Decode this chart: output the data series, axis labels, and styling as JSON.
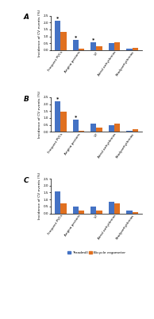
{
  "panels": [
    {
      "label": "A",
      "treadmill": [
        2.1,
        0.75,
        0.6,
        0.5,
        0.1
      ],
      "bicycle": [
        1.3,
        0.1,
        0.27,
        0.6,
        0.18
      ],
      "asterisks_treadmill": [
        true,
        true,
        true,
        false,
        false
      ],
      "ylim": [
        0,
        2.5
      ]
    },
    {
      "label": "B",
      "treadmill": [
        2.2,
        0.85,
        0.58,
        0.45,
        0.1
      ],
      "bicycle": [
        1.45,
        0.1,
        0.28,
        0.58,
        0.18
      ],
      "asterisks_treadmill": [
        true,
        true,
        false,
        false,
        false
      ],
      "ylim": [
        0,
        2.5
      ]
    },
    {
      "label": "C",
      "treadmill": [
        1.6,
        0.48,
        0.48,
        0.85,
        0.18
      ],
      "bicycle": [
        0.72,
        0.18,
        0.18,
        0.72,
        0.08
      ],
      "asterisks_treadmill": [
        false,
        false,
        false,
        false,
        false
      ],
      "ylim": [
        0,
        2.5
      ]
    }
  ],
  "categories": [
    "Frequent PVCs",
    "Angina pectoris",
    "VT",
    "Atrial arrhythmias",
    "Bradyarrhythmias"
  ],
  "ylabel": "Incidence of CV events (%)",
  "treadmill_color": "#4472C4",
  "bicycle_color": "#E07020",
  "legend_labels": [
    "Treadmill",
    "Bicycle ergometer"
  ],
  "bar_width": 0.32
}
